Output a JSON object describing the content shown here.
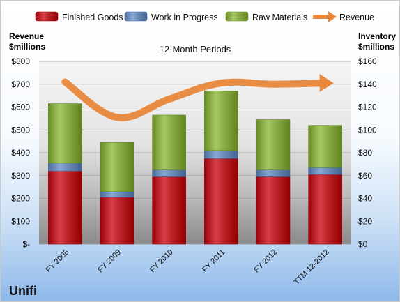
{
  "company": "Unifi",
  "chart_data": {
    "type": "bar",
    "stacked": true,
    "subtitle": "12-Month Periods",
    "categories": [
      "FY 2008",
      "FY 2009",
      "FY 2010",
      "FY 2011",
      "FY 2012",
      "TTM 12-2012"
    ],
    "series": [
      {
        "name": "Finished Goods",
        "axis": "right",
        "color": "#c0262d",
        "values": [
          64,
          41,
          59,
          75,
          59,
          61
        ]
      },
      {
        "name": "Work in Progress",
        "axis": "right",
        "color": "#6f8fbf",
        "values": [
          7,
          5,
          6,
          7,
          6,
          6
        ]
      },
      {
        "name": "Raw Materials",
        "axis": "right",
        "color": "#8db04a",
        "values": [
          52,
          43,
          48,
          52,
          44,
          37
        ]
      },
      {
        "name": "Revenue",
        "axis": "left",
        "type": "line",
        "color": "#e8873a",
        "values": [
          710,
          555,
          635,
          705,
          700,
          705
        ]
      }
    ],
    "left_axis": {
      "title_lines": [
        "Revenue",
        "$millions"
      ],
      "range": [
        0,
        800
      ],
      "ticks": [
        "$-",
        "$100",
        "$200",
        "$300",
        "$400",
        "$500",
        "$600",
        "$700",
        "$800"
      ]
    },
    "right_axis": {
      "title_lines": [
        "Inventory",
        "$millions"
      ],
      "range": [
        0,
        160
      ],
      "ticks": [
        "$0",
        "$20",
        "$40",
        "$60",
        "$80",
        "$100",
        "$120",
        "$140",
        "$160"
      ]
    },
    "legend_position": "top"
  }
}
